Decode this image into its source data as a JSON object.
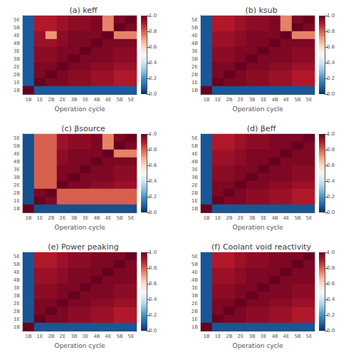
{
  "chart_data": [
    {
      "type": "heatmap",
      "title": "(a) keff",
      "xlabel": "Operation cycle",
      "categories": [
        "1B",
        "1E",
        "2B",
        "2E",
        "3B",
        "3E",
        "4B",
        "4E",
        "5B",
        "5E"
      ],
      "y_categories": [
        "5E",
        "5B",
        "4E",
        "4B",
        "3E",
        "3B",
        "2E",
        "2B",
        "1E",
        "1B"
      ],
      "cells": [
        [
          0.08,
          0.9,
          0.9,
          0.93,
          0.95,
          0.95,
          0.97,
          0.75,
          0.97,
          1.0
        ],
        [
          0.08,
          0.9,
          0.9,
          0.93,
          0.95,
          0.95,
          0.97,
          0.75,
          1.0,
          0.97
        ],
        [
          0.08,
          0.93,
          0.72,
          0.95,
          0.97,
          0.97,
          0.97,
          1.0,
          0.75,
          0.75
        ],
        [
          0.08,
          0.93,
          0.93,
          0.95,
          0.97,
          0.97,
          1.0,
          0.97,
          0.97,
          0.97
        ],
        [
          0.08,
          0.95,
          0.95,
          0.97,
          0.97,
          1.0,
          0.97,
          0.97,
          0.95,
          0.95
        ],
        [
          0.08,
          0.95,
          0.95,
          0.97,
          1.0,
          0.97,
          0.97,
          0.97,
          0.95,
          0.95
        ],
        [
          0.08,
          0.97,
          0.97,
          1.0,
          0.97,
          0.97,
          0.95,
          0.95,
          0.93,
          0.93
        ],
        [
          0.08,
          0.97,
          1.0,
          0.97,
          0.95,
          0.95,
          0.93,
          0.93,
          0.9,
          0.9
        ],
        [
          0.08,
          1.0,
          0.97,
          0.97,
          0.95,
          0.95,
          0.93,
          0.93,
          0.9,
          0.9
        ],
        [
          1.0,
          0.08,
          0.08,
          0.08,
          0.08,
          0.08,
          0.08,
          0.08,
          0.08,
          0.08
        ]
      ],
      "color_range": [
        0,
        1
      ],
      "color_ticks": [
        {
          "value": 0,
          "label": "0.0"
        },
        0.2,
        0.4,
        0.6,
        0.8,
        {
          "value": 1.0,
          "label": "1.0"
        }
      ]
    },
    {
      "type": "heatmap",
      "title": "(b) ksub",
      "xlabel": "Operation cycle",
      "categories": [
        "1B",
        "1E",
        "2B",
        "2E",
        "3B",
        "3E",
        "4B",
        "4E",
        "5B",
        "5E"
      ],
      "y_categories": [
        "5E",
        "5B",
        "4E",
        "4B",
        "3E",
        "3B",
        "2E",
        "2B",
        "1E",
        "1B"
      ],
      "cells": [
        [
          0.07,
          0.9,
          0.9,
          0.93,
          0.95,
          0.95,
          0.97,
          0.75,
          0.97,
          1.0
        ],
        [
          0.07,
          0.9,
          0.9,
          0.93,
          0.95,
          0.95,
          0.97,
          0.75,
          1.0,
          0.97
        ],
        [
          0.07,
          0.93,
          0.93,
          0.95,
          0.97,
          0.97,
          0.97,
          1.0,
          0.75,
          0.75
        ],
        [
          0.07,
          0.93,
          0.93,
          0.95,
          0.97,
          0.97,
          1.0,
          0.97,
          0.97,
          0.97
        ],
        [
          0.07,
          0.95,
          0.95,
          0.97,
          0.97,
          1.0,
          0.97,
          0.97,
          0.95,
          0.95
        ],
        [
          0.07,
          0.95,
          0.95,
          0.97,
          1.0,
          0.97,
          0.97,
          0.97,
          0.95,
          0.95
        ],
        [
          0.07,
          0.97,
          0.97,
          1.0,
          0.97,
          0.97,
          0.95,
          0.95,
          0.93,
          0.93
        ],
        [
          0.07,
          0.97,
          1.0,
          0.97,
          0.95,
          0.95,
          0.93,
          0.93,
          0.9,
          0.9
        ],
        [
          0.07,
          1.0,
          0.97,
          0.97,
          0.95,
          0.95,
          0.93,
          0.93,
          0.9,
          0.9
        ],
        [
          1.0,
          0.07,
          0.07,
          0.07,
          0.07,
          0.07,
          0.07,
          0.07,
          0.07,
          0.07
        ]
      ],
      "color_range": [
        0,
        1
      ],
      "color_ticks": [
        {
          "value": 0,
          "label": "0.0"
        },
        0.2,
        0.4,
        0.6,
        0.8,
        {
          "value": 1.0,
          "label": "1.0"
        }
      ]
    },
    {
      "type": "heatmap",
      "title": "(c) βsource",
      "xlabel": "Operation cycle",
      "categories": [
        "1B",
        "1E",
        "2B",
        "2E",
        "3B",
        "3E",
        "4B",
        "4E",
        "5B",
        "5E"
      ],
      "y_categories": [
        "5E",
        "5B",
        "4E",
        "4B",
        "3E",
        "3B",
        "2E",
        "2B",
        "1E",
        "1B"
      ],
      "cells": [
        [
          0.06,
          0.8,
          0.8,
          0.93,
          0.95,
          0.95,
          0.97,
          0.75,
          0.97,
          1.0
        ],
        [
          0.06,
          0.8,
          0.8,
          0.93,
          0.95,
          0.95,
          0.97,
          0.75,
          1.0,
          0.97
        ],
        [
          0.06,
          0.8,
          0.8,
          0.95,
          0.97,
          0.97,
          0.97,
          1.0,
          0.75,
          0.75
        ],
        [
          0.06,
          0.8,
          0.8,
          0.95,
          0.97,
          0.97,
          1.0,
          0.97,
          0.97,
          0.97
        ],
        [
          0.06,
          0.8,
          0.8,
          0.97,
          0.97,
          1.0,
          0.97,
          0.97,
          0.95,
          0.95
        ],
        [
          0.06,
          0.8,
          0.8,
          0.97,
          1.0,
          0.97,
          0.97,
          0.97,
          0.95,
          0.95
        ],
        [
          0.06,
          0.8,
          0.8,
          1.0,
          0.97,
          0.97,
          0.95,
          0.95,
          0.93,
          0.93
        ],
        [
          0.06,
          0.97,
          1.0,
          0.8,
          0.8,
          0.8,
          0.8,
          0.8,
          0.8,
          0.8
        ],
        [
          0.06,
          1.0,
          0.97,
          0.8,
          0.8,
          0.8,
          0.8,
          0.8,
          0.8,
          0.8
        ],
        [
          1.0,
          0.06,
          0.06,
          0.06,
          0.06,
          0.06,
          0.06,
          0.06,
          0.06,
          0.06
        ]
      ],
      "color_range": [
        0,
        1
      ],
      "color_ticks": [
        {
          "value": 0,
          "label": "0.0"
        },
        0.2,
        0.4,
        0.6,
        0.8,
        {
          "value": 1.0,
          "label": "1.0"
        }
      ]
    },
    {
      "type": "heatmap",
      "title": "(d) βeff",
      "xlabel": "Operation cycle",
      "categories": [
        "1B",
        "1E",
        "2B",
        "2E",
        "3B",
        "3E",
        "4B",
        "4E",
        "5B",
        "5E"
      ],
      "y_categories": [
        "5E",
        "5B",
        "4E",
        "4B",
        "3E",
        "3B",
        "2E",
        "2B",
        "1E",
        "1B"
      ],
      "cells": [
        [
          0.07,
          0.9,
          0.9,
          0.93,
          0.95,
          0.95,
          0.97,
          0.97,
          0.97,
          1.0
        ],
        [
          0.07,
          0.9,
          0.9,
          0.93,
          0.95,
          0.95,
          0.97,
          0.97,
          1.0,
          0.97
        ],
        [
          0.07,
          0.93,
          0.93,
          0.95,
          0.97,
          0.97,
          0.97,
          1.0,
          0.97,
          0.97
        ],
        [
          0.07,
          0.93,
          0.93,
          0.95,
          0.97,
          0.97,
          1.0,
          0.97,
          0.97,
          0.97
        ],
        [
          0.07,
          0.95,
          0.95,
          0.97,
          0.97,
          1.0,
          0.97,
          0.97,
          0.95,
          0.95
        ],
        [
          0.07,
          0.95,
          0.95,
          0.97,
          1.0,
          0.97,
          0.97,
          0.97,
          0.95,
          0.95
        ],
        [
          0.07,
          0.97,
          0.97,
          1.0,
          0.97,
          0.97,
          0.95,
          0.95,
          0.93,
          0.93
        ],
        [
          0.07,
          0.97,
          1.0,
          0.97,
          0.95,
          0.95,
          0.93,
          0.93,
          0.9,
          0.9
        ],
        [
          0.07,
          1.0,
          0.97,
          0.97,
          0.95,
          0.95,
          0.93,
          0.93,
          0.9,
          0.9
        ],
        [
          1.0,
          0.07,
          0.07,
          0.07,
          0.07,
          0.07,
          0.07,
          0.07,
          0.07,
          0.07
        ]
      ],
      "color_range": [
        0,
        1
      ],
      "color_ticks": [
        {
          "value": 0,
          "label": "0.0"
        },
        0.2,
        0.4,
        0.6,
        0.8,
        {
          "value": 1.0,
          "label": "1.0"
        }
      ]
    },
    {
      "type": "heatmap",
      "title": "(e) Power peaking",
      "xlabel": "Operation cycle",
      "categories": [
        "1B",
        "1E",
        "2B",
        "2E",
        "3B",
        "3E",
        "4B",
        "4E",
        "5B",
        "5E"
      ],
      "y_categories": [
        "5E",
        "5B",
        "4E",
        "4B",
        "3E",
        "3B",
        "2E",
        "2B",
        "1E",
        "1B"
      ],
      "cells": [
        [
          0.07,
          0.9,
          0.9,
          0.93,
          0.95,
          0.95,
          0.97,
          0.97,
          0.97,
          1.0
        ],
        [
          0.07,
          0.9,
          0.9,
          0.93,
          0.95,
          0.95,
          0.97,
          0.97,
          1.0,
          0.97
        ],
        [
          0.07,
          0.93,
          0.93,
          0.95,
          0.97,
          0.97,
          0.97,
          1.0,
          0.97,
          0.97
        ],
        [
          0.07,
          0.93,
          0.93,
          0.95,
          0.97,
          0.97,
          1.0,
          0.97,
          0.97,
          0.97
        ],
        [
          0.07,
          0.95,
          0.95,
          0.97,
          0.97,
          1.0,
          0.97,
          0.97,
          0.95,
          0.95
        ],
        [
          0.07,
          0.95,
          0.95,
          0.97,
          1.0,
          0.97,
          0.97,
          0.97,
          0.95,
          0.95
        ],
        [
          0.07,
          0.97,
          0.97,
          1.0,
          0.97,
          0.97,
          0.95,
          0.95,
          0.93,
          0.93
        ],
        [
          0.07,
          0.97,
          1.0,
          0.97,
          0.95,
          0.95,
          0.93,
          0.93,
          0.9,
          0.9
        ],
        [
          0.07,
          1.0,
          0.97,
          0.97,
          0.95,
          0.95,
          0.93,
          0.93,
          0.9,
          0.9
        ],
        [
          1.0,
          0.07,
          0.07,
          0.07,
          0.07,
          0.07,
          0.07,
          0.07,
          0.07,
          0.07
        ]
      ],
      "color_range": [
        0,
        1
      ],
      "color_ticks": [
        {
          "value": 0,
          "label": "0.0"
        },
        0.2,
        0.4,
        0.6,
        0.8,
        {
          "value": 1.0,
          "label": "1.0"
        }
      ]
    },
    {
      "type": "heatmap",
      "title": "(f) Coolant void reactivity",
      "xlabel": "Operation cycle",
      "categories": [
        "1B",
        "1E",
        "2B",
        "2E",
        "3B",
        "3E",
        "4B",
        "4E",
        "5B",
        "5E"
      ],
      "y_categories": [
        "5E",
        "5B",
        "4E",
        "4B",
        "3E",
        "3B",
        "2E",
        "2B",
        "1E",
        "1B"
      ],
      "cells": [
        [
          0.07,
          0.9,
          0.9,
          0.93,
          0.95,
          0.95,
          0.97,
          0.97,
          0.97,
          1.0
        ],
        [
          0.07,
          0.9,
          0.9,
          0.93,
          0.95,
          0.95,
          0.97,
          0.97,
          1.0,
          0.97
        ],
        [
          0.07,
          0.93,
          0.93,
          0.95,
          0.97,
          0.97,
          0.97,
          1.0,
          0.97,
          0.97
        ],
        [
          0.07,
          0.93,
          0.93,
          0.95,
          0.97,
          0.97,
          1.0,
          0.97,
          0.97,
          0.97
        ],
        [
          0.07,
          0.95,
          0.95,
          0.97,
          0.97,
          1.0,
          0.97,
          0.97,
          0.95,
          0.95
        ],
        [
          0.07,
          0.95,
          0.95,
          0.97,
          1.0,
          0.97,
          0.97,
          0.97,
          0.95,
          0.95
        ],
        [
          0.07,
          0.97,
          0.97,
          1.0,
          0.97,
          0.97,
          0.95,
          0.95,
          0.93,
          0.93
        ],
        [
          0.07,
          0.97,
          1.0,
          0.97,
          0.95,
          0.95,
          0.93,
          0.93,
          0.9,
          0.9
        ],
        [
          0.07,
          1.0,
          0.97,
          0.97,
          0.95,
          0.95,
          0.93,
          0.93,
          0.9,
          0.9
        ],
        [
          1.0,
          0.07,
          0.07,
          0.07,
          0.07,
          0.07,
          0.07,
          0.07,
          0.07,
          0.07
        ]
      ],
      "color_range": [
        0,
        1
      ],
      "color_ticks": [
        {
          "value": 0,
          "label": "0.0"
        },
        0.2,
        0.4,
        0.6,
        0.8,
        {
          "value": 1.0,
          "label": "1.0"
        }
      ]
    }
  ]
}
